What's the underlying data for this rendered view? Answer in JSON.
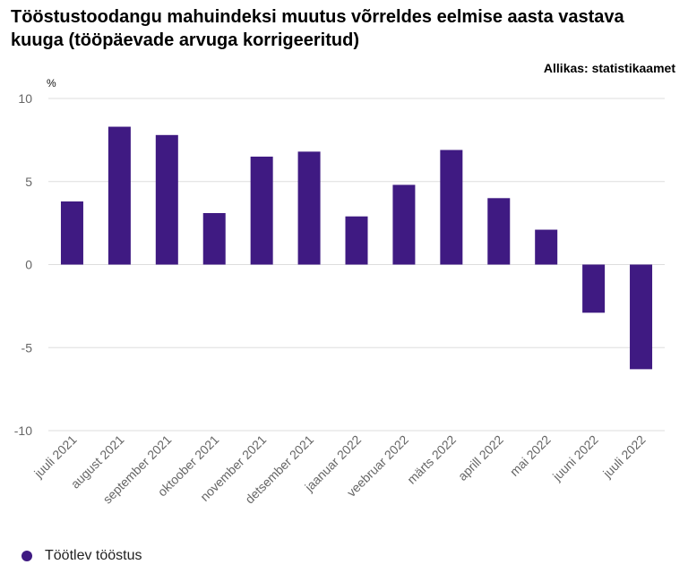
{
  "title": "Tööstustoodangu mahuindeksi muutus võrreldes eelmise aasta vastava kuuga (tööpäevade arvuga korrigeeritud)",
  "source": "Allikas: statistikaamet",
  "colors": {
    "bar": "#3f1a82",
    "grid": "#dddddd",
    "axis_text": "#666666"
  },
  "chart_data": {
    "type": "bar",
    "title": "Tööstustoodangu mahuindeksi muutus võrreldes eelmise aasta vastava kuuga (tööpäevade arvuga korrigeeritud)",
    "ylabel": "%",
    "xlabel": "",
    "ylim": [
      -10,
      10
    ],
    "yticks": [
      10,
      5,
      0,
      -5,
      -10
    ],
    "categories": [
      "juuli 2021",
      "august 2021",
      "september 2021",
      "oktoober 2021",
      "november 2021",
      "detsember 2021",
      "jaanuar 2022",
      "veebruar 2022",
      "märts 2022",
      "aprill 2022",
      "mai 2022",
      "juuni 2022",
      "juuli 2022"
    ],
    "series": [
      {
        "name": "Töötlev tööstus",
        "values": [
          3.8,
          8.3,
          7.8,
          3.1,
          6.5,
          6.8,
          2.9,
          4.8,
          6.9,
          4.0,
          2.1,
          -2.9,
          -6.3
        ]
      }
    ],
    "legend_position": "bottom-left"
  }
}
